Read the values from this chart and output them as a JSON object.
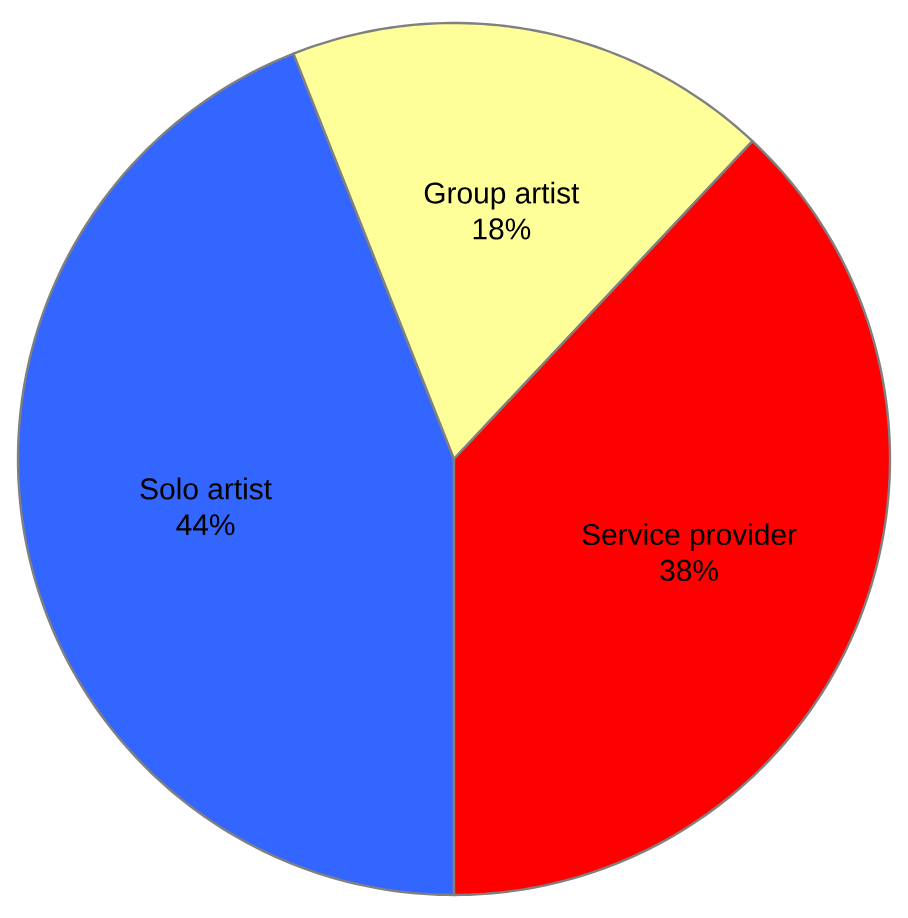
{
  "chart_data": {
    "type": "pie",
    "categories": [
      "Solo artist",
      "Group artist",
      "Service provider"
    ],
    "values": [
      44,
      18,
      38
    ],
    "value_labels": [
      "44%",
      "18%",
      "38%"
    ],
    "colors": [
      "#3366ff",
      "#ffff99",
      "#ff0000"
    ]
  }
}
